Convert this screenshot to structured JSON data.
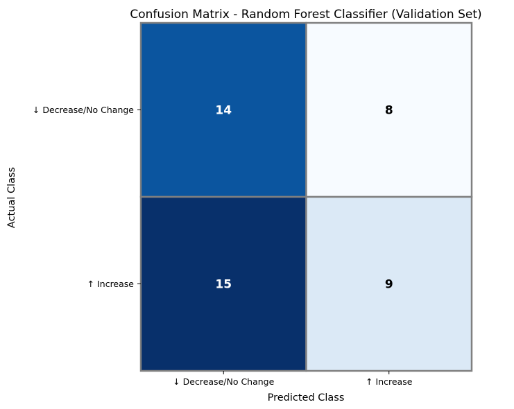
{
  "chart_data": {
    "type": "heatmap",
    "title": "Confusion Matrix - Random Forest Classifier (Validation Set)",
    "xlabel": "Predicted Class",
    "ylabel": "Actual Class",
    "x_categories": [
      "↓ Decrease/No Change",
      "↑ Increase"
    ],
    "y_categories": [
      "↓ Decrease/No Change",
      "↑ Increase"
    ],
    "values": [
      [
        14,
        8
      ],
      [
        15,
        9
      ]
    ],
    "colormap": "Blues",
    "cell_colors": [
      [
        "#0b559f",
        "#f7fbff"
      ],
      [
        "#08306b",
        "#dbe9f6"
      ]
    ],
    "label_colors": [
      [
        "#ffffff",
        "#000000"
      ],
      [
        "#ffffff",
        "#000000"
      ]
    ],
    "grid_color": "#808080",
    "legend": false
  }
}
